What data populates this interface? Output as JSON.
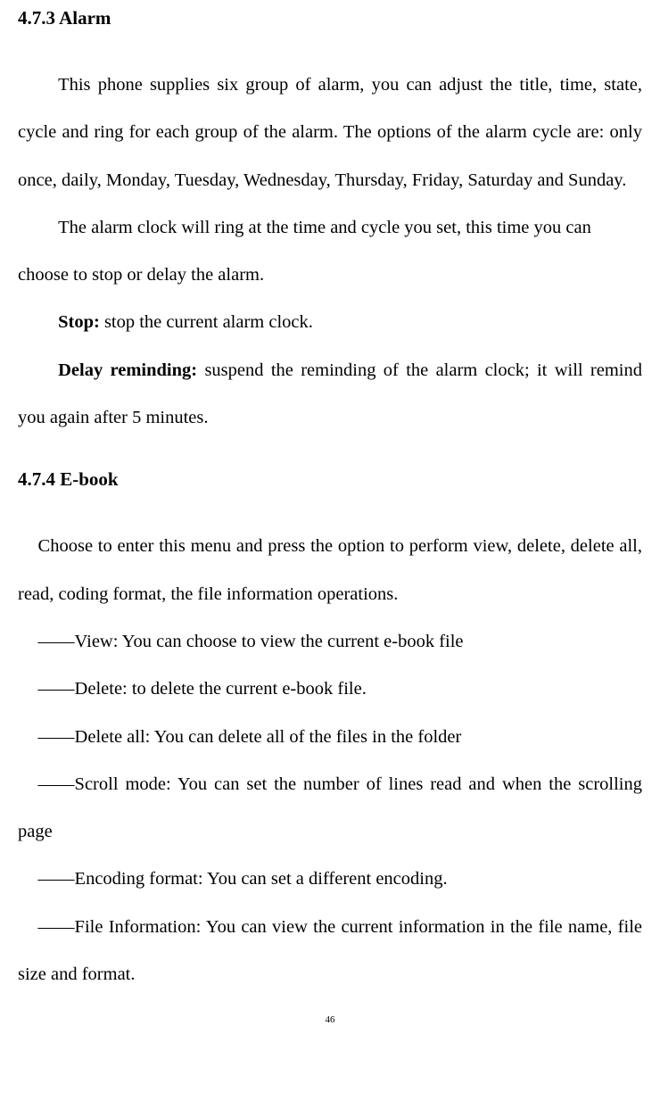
{
  "section1": {
    "heading": "4.7.3 Alarm",
    "p1": "This phone supplies six group of alarm, you can adjust the title, time, state, cycle and ring for each group of the alarm. The options of the alarm cycle are: only once, daily, Monday, Tuesday, Wednesday, Thursday, Friday, Saturday and Sunday.",
    "p2": "The alarm clock will ring at the time and cycle you set, this time you can choose to stop or delay the alarm.",
    "p3_bold": "Stop:",
    "p3_rest": " stop the current alarm clock.",
    "p4_bold": "Delay reminding:",
    "p4_rest": " suspend the reminding of the alarm clock; it will remind you again after 5 minutes."
  },
  "section2": {
    "heading": "4.7.4 E-book",
    "intro": "Choose to enter this menu and press the option to perform view, delete, delete all, read, coding format, the file information operations.",
    "items": [
      "――View: You can choose to view the current e-book file",
      "――Delete: to delete the current e-book file.",
      "――Delete all: You can delete all of the files in the folder",
      "――Scroll mode: You can set the number of lines read and when the scrolling page",
      "――Encoding format: You can set a different encoding.",
      "――File Information: You can view the current information in the file name, file size and format."
    ]
  },
  "page_number": "46"
}
